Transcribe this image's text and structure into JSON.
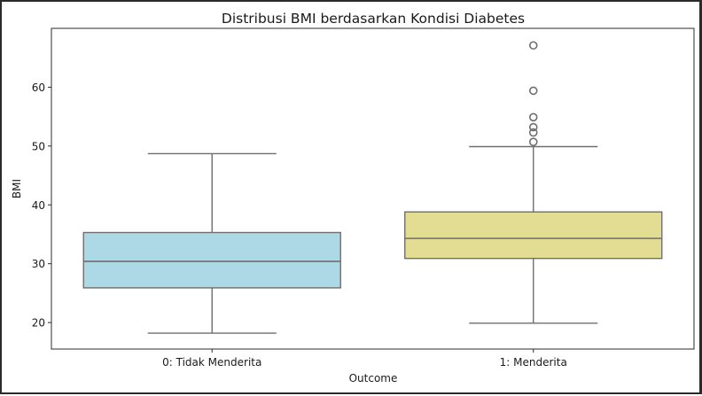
{
  "chart_data": {
    "type": "box",
    "title": "Distribusi BMI berdasarkan Kondisi Diabetes",
    "xlabel": "Outcome",
    "ylabel": "BMI",
    "ylim": [
      15.5,
      70.0
    ],
    "yticks": [
      20,
      30,
      40,
      50,
      60
    ],
    "grid": false,
    "categories": [
      "0: Tidak Menderita",
      "1: Menderita"
    ],
    "boxes": [
      {
        "category": "0: Tidak Menderita",
        "whisker_low": 18.2,
        "q1": 25.9,
        "median": 30.4,
        "q3": 35.3,
        "whisker_high": 48.7,
        "outliers": [],
        "color": "#add8e6"
      },
      {
        "category": "1: Menderita",
        "whisker_low": 19.9,
        "q1": 30.9,
        "median": 34.3,
        "q3": 38.8,
        "whisker_high": 49.9,
        "outliers": [
          50.7,
          52.3,
          53.2,
          54.9,
          59.4,
          67.1
        ],
        "color": "#e3dc93"
      }
    ]
  }
}
